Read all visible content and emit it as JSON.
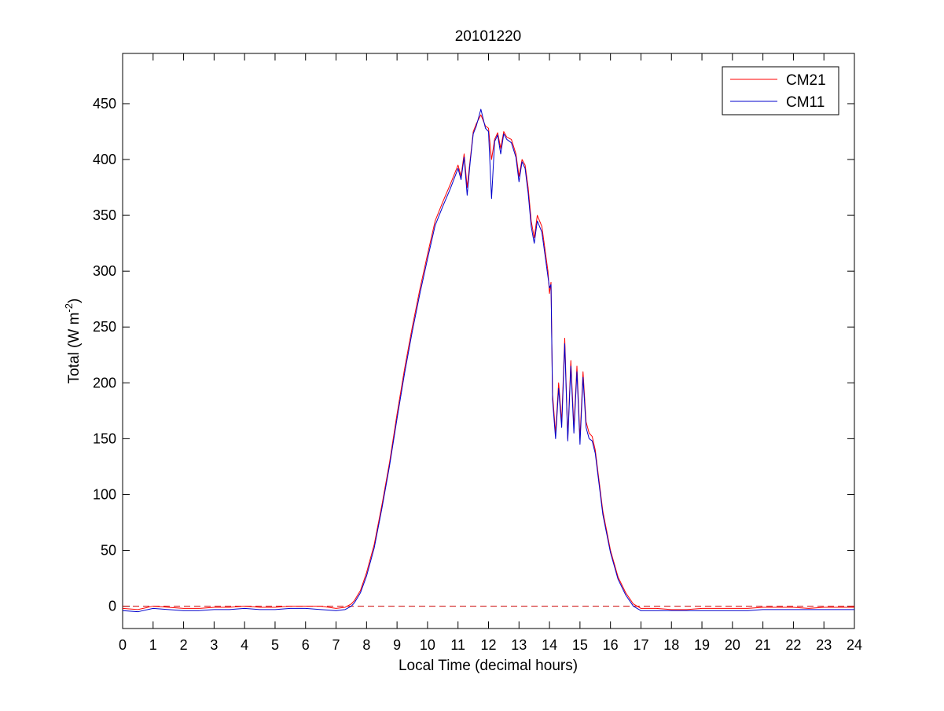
{
  "chart_data": {
    "type": "line",
    "title": "20101220",
    "xlabel": "Local Time (decimal hours)",
    "ylabel": {
      "main": "Total (W m",
      "superscript": "-2",
      "close": ")"
    },
    "xlim": [
      0,
      24
    ],
    "ylim": [
      -20,
      495
    ],
    "x_ticks": [
      0,
      1,
      2,
      3,
      4,
      5,
      6,
      7,
      8,
      9,
      10,
      11,
      12,
      13,
      14,
      15,
      16,
      17,
      18,
      19,
      20,
      21,
      22,
      23,
      24
    ],
    "y_ticks": [
      0,
      50,
      100,
      150,
      200,
      250,
      300,
      350,
      400,
      450
    ],
    "grid": false,
    "legend_position": "top-right",
    "reference_line": {
      "y": 0,
      "style": "dashed",
      "color": "#cc0000"
    },
    "series": [
      {
        "name": "CM21",
        "color": "#ff0000",
        "x": [
          0,
          0.5,
          1,
          1.5,
          2,
          2.5,
          3,
          3.5,
          4,
          4.5,
          5,
          5.5,
          6,
          6.5,
          7,
          7.3,
          7.5,
          7.6,
          7.8,
          8,
          8.25,
          8.5,
          8.75,
          9,
          9.25,
          9.5,
          9.75,
          10,
          10.25,
          10.5,
          10.75,
          11,
          11.1,
          11.2,
          11.3,
          11.4,
          11.5,
          11.6,
          11.75,
          11.9,
          12,
          12.1,
          12.2,
          12.3,
          12.4,
          12.5,
          12.6,
          12.75,
          12.9,
          13,
          13.1,
          13.2,
          13.3,
          13.4,
          13.5,
          13.6,
          13.75,
          13.85,
          13.95,
          14,
          14.05,
          14.1,
          14.2,
          14.3,
          14.4,
          14.5,
          14.6,
          14.7,
          14.8,
          14.9,
          15,
          15.1,
          15.2,
          15.3,
          15.4,
          15.5,
          15.75,
          16,
          16.25,
          16.5,
          16.75,
          17,
          17.5,
          18,
          18.5,
          19,
          19.5,
          20,
          20.5,
          21,
          21.5,
          22,
          22.5,
          23,
          23.5,
          24
        ],
        "y": [
          -2,
          -3,
          0,
          -1,
          -2,
          -2,
          -1,
          -1,
          0,
          -1,
          -1,
          0,
          0,
          0,
          -2,
          -1,
          2,
          5,
          14,
          30,
          55,
          90,
          128,
          172,
          213,
          250,
          284,
          315,
          345,
          362,
          378,
          395,
          385,
          405,
          375,
          400,
          425,
          432,
          440,
          430,
          428,
          400,
          418,
          424,
          410,
          425,
          420,
          418,
          405,
          385,
          400,
          395,
          375,
          345,
          330,
          350,
          340,
          320,
          300,
          280,
          290,
          190,
          155,
          200,
          165,
          240,
          150,
          220,
          160,
          215,
          150,
          210,
          165,
          155,
          152,
          140,
          85,
          50,
          26,
          12,
          2,
          -2,
          -2,
          -3,
          -3,
          -2,
          -2,
          -2,
          -2,
          -1,
          -1,
          -1,
          -2,
          -1,
          -1,
          -1
        ]
      },
      {
        "name": "CM11",
        "color": "#0000cc",
        "x": [
          0,
          0.5,
          1,
          1.5,
          2,
          2.5,
          3,
          3.5,
          4,
          4.5,
          5,
          5.5,
          6,
          6.5,
          7,
          7.3,
          7.5,
          7.6,
          7.8,
          8,
          8.25,
          8.5,
          8.75,
          9,
          9.25,
          9.5,
          9.75,
          10,
          10.25,
          10.5,
          10.75,
          11,
          11.1,
          11.2,
          11.3,
          11.4,
          11.5,
          11.6,
          11.75,
          11.9,
          12,
          12.1,
          12.2,
          12.3,
          12.4,
          12.5,
          12.6,
          12.75,
          12.9,
          13,
          13.1,
          13.2,
          13.3,
          13.4,
          13.5,
          13.6,
          13.75,
          13.85,
          13.95,
          14,
          14.05,
          14.1,
          14.2,
          14.3,
          14.4,
          14.5,
          14.6,
          14.7,
          14.8,
          14.9,
          15,
          15.1,
          15.2,
          15.3,
          15.4,
          15.5,
          15.75,
          16,
          16.25,
          16.5,
          16.75,
          17,
          17.5,
          18,
          18.5,
          19,
          19.5,
          20,
          20.5,
          21,
          21.5,
          22,
          22.5,
          23,
          23.5,
          24
        ],
        "y": [
          -4,
          -5,
          -2,
          -3,
          -4,
          -4,
          -3,
          -3,
          -2,
          -3,
          -3,
          -2,
          -2,
          -3,
          -4,
          -3,
          0,
          3,
          12,
          27,
          52,
          87,
          125,
          168,
          209,
          246,
          280,
          311,
          341,
          358,
          374,
          392,
          382,
          402,
          368,
          398,
          423,
          430,
          445,
          428,
          425,
          365,
          416,
          422,
          405,
          423,
          418,
          415,
          402,
          380,
          398,
          392,
          370,
          340,
          325,
          345,
          335,
          315,
          295,
          285,
          288,
          185,
          150,
          195,
          160,
          235,
          148,
          215,
          155,
          210,
          145,
          205,
          160,
          150,
          148,
          137,
          82,
          48,
          24,
          10,
          0,
          -4,
          -4,
          -4,
          -4,
          -4,
          -4,
          -4,
          -4,
          -3,
          -3,
          -3,
          -3,
          -3,
          -3,
          -3
        ]
      }
    ]
  }
}
